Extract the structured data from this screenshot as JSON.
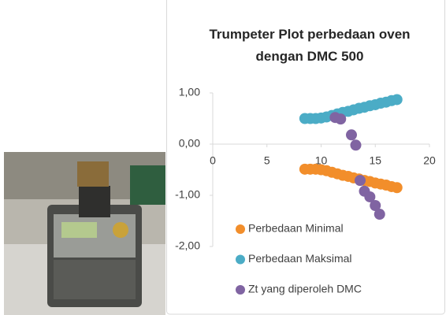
{
  "chart_data": {
    "type": "scatter",
    "title": "Trumpeter Plot perbedaan oven dengan DMC 500",
    "xlim": [
      0,
      20
    ],
    "xticks": [
      0,
      5,
      10,
      15,
      20
    ],
    "ylim": [
      -2,
      1
    ],
    "yticks": [
      {
        "value": -2,
        "label": "-2,00"
      },
      {
        "value": -1,
        "label": "-1,00"
      },
      {
        "value": 0,
        "label": "0,00"
      },
      {
        "value": 1,
        "label": "1,00"
      }
    ],
    "legend": "lower left",
    "series": [
      {
        "name": "Perbedaan Minimal",
        "color": "#f28e2b",
        "x": [
          8.5,
          9,
          9.5,
          10,
          10.5,
          11,
          11.5,
          12,
          12.5,
          13,
          13.5,
          14,
          14.5,
          15,
          15.5,
          16,
          16.5,
          17
        ],
        "values": [
          -0.49,
          -0.49,
          -0.49,
          -0.5,
          -0.52,
          -0.55,
          -0.58,
          -0.61,
          -0.63,
          -0.66,
          -0.68,
          -0.71,
          -0.73,
          -0.76,
          -0.78,
          -0.8,
          -0.83,
          -0.85
        ]
      },
      {
        "name": "Perbedaan Maksimal",
        "color": "#4bacc6",
        "x": [
          8.5,
          9,
          9.5,
          10,
          10.5,
          11,
          11.5,
          12,
          12.5,
          13,
          13.5,
          14,
          14.5,
          15,
          15.5,
          16,
          16.5,
          17
        ],
        "values": [
          0.5,
          0.5,
          0.5,
          0.51,
          0.53,
          0.56,
          0.59,
          0.62,
          0.64,
          0.67,
          0.7,
          0.72,
          0.75,
          0.77,
          0.8,
          0.82,
          0.85,
          0.87
        ]
      },
      {
        "name": "Zt yang diperoleh DMC",
        "color": "#8064a2",
        "x": [
          11.3,
          11.8,
          12.8,
          13.2,
          13.6,
          14.0,
          14.5,
          15.0,
          15.4
        ],
        "values": [
          0.52,
          0.49,
          0.18,
          -0.02,
          -0.71,
          -0.92,
          -1.03,
          -1.2,
          -1.37
        ]
      }
    ]
  }
}
